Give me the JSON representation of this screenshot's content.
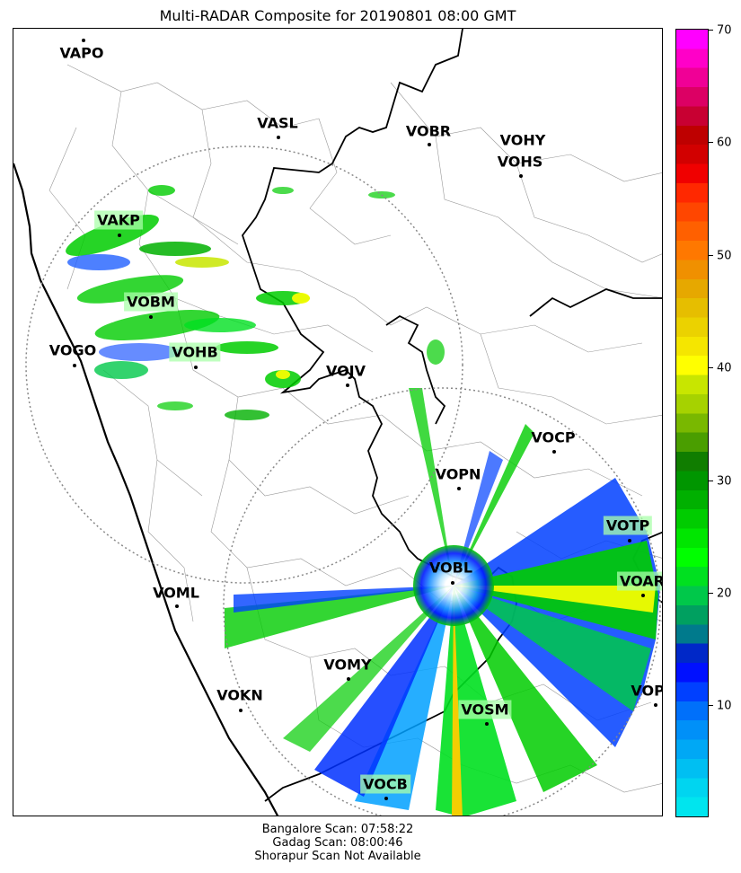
{
  "title": "Multi-RADAR Composite for 20190801 08:00 GMT",
  "airports": [
    {
      "code": "VAPO",
      "boxed": false
    },
    {
      "code": "VASL",
      "boxed": false
    },
    {
      "code": "VOBR",
      "boxed": false
    },
    {
      "code": "VOHY",
      "boxed": false
    },
    {
      "code": "VOHS",
      "boxed": false
    },
    {
      "code": "VAKP",
      "boxed": true
    },
    {
      "code": "VOBM",
      "boxed": true
    },
    {
      "code": "VOGO",
      "boxed": false
    },
    {
      "code": "VOHB",
      "boxed": true
    },
    {
      "code": "VOJV",
      "boxed": false
    },
    {
      "code": "VOCP",
      "boxed": false
    },
    {
      "code": "VOPN",
      "boxed": false
    },
    {
      "code": "VOTP",
      "boxed": true
    },
    {
      "code": "VOBL",
      "boxed": false
    },
    {
      "code": "VOAR",
      "boxed": true
    },
    {
      "code": "VOML",
      "boxed": false
    },
    {
      "code": "VOMY",
      "boxed": false
    },
    {
      "code": "VOKN",
      "boxed": false
    },
    {
      "code": "VOPC",
      "boxed": false
    },
    {
      "code": "VOSM",
      "boxed": true
    },
    {
      "code": "VOCB",
      "boxed": true
    }
  ],
  "colorbar": {
    "min": 0,
    "max": 70,
    "ticks": [
      "10",
      "20",
      "30",
      "40",
      "50",
      "60",
      "70"
    ],
    "colors": [
      "#00e5ee",
      "#00d5f0",
      "#00bff2",
      "#00a8f5",
      "#0090f8",
      "#0070fa",
      "#0040ff",
      "#0010ff",
      "#0028c8",
      "#007a8c",
      "#00a060",
      "#00c84a",
      "#00e020",
      "#00ff00",
      "#00e600",
      "#00cc00",
      "#00b000",
      "#009600",
      "#107d00",
      "#4a9e00",
      "#79b800",
      "#a6d200",
      "#c8e600",
      "#ffff00",
      "#f5e600",
      "#ebd200",
      "#e6be00",
      "#e6a800",
      "#f09000",
      "#ff7800",
      "#ff6000",
      "#ff4600",
      "#ff2800",
      "#f00000",
      "#d20000",
      "#be0000",
      "#c80032",
      "#dc0064",
      "#f00096",
      "#ff00c8",
      "#ff00ff"
    ]
  },
  "scan_info": [
    "Bangalore Scan: 07:58:22",
    "Gadag Scan: 08:00:46",
    "Shorapur Scan Not Available"
  ]
}
